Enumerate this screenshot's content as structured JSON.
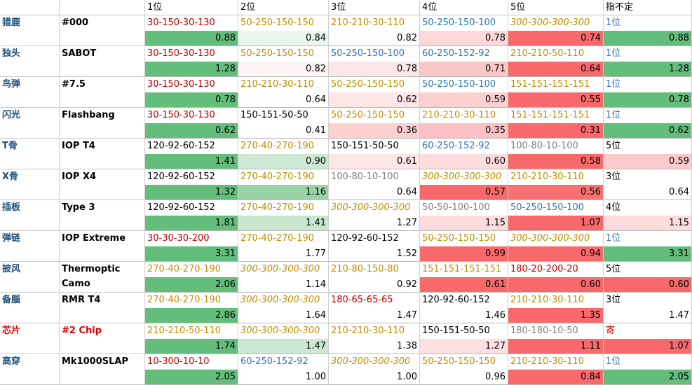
{
  "header": [
    "1位",
    "2位",
    "3位",
    "4位",
    "5位",
    "指不定"
  ],
  "rows": [
    {
      "name": "猎鹿",
      "item": "#000",
      "color": "#1f4e79",
      "cells": [
        {
          "text": "30-150-30-130",
          "color": "#c00000",
          "value": "0.88",
          "fill": "#63be7b"
        },
        {
          "text": "50-250-150-150",
          "color": "#bf8f00",
          "value": "0.84",
          "fill": "#eaf6ec"
        },
        {
          "text": "210-210-30-110",
          "color": "#bf8f00",
          "value": "0.82",
          "fill": "#fdfdfd"
        },
        {
          "text": "50-250-150-100",
          "color": "#2f75b5",
          "value": "0.78",
          "fill": "#fbd8d9"
        },
        {
          "text": "300-300-300-300",
          "color": "#bf8f00",
          "italic": true,
          "value": "0.74",
          "fill": "#f8696b"
        },
        {
          "text": "1位",
          "color": "#2f75b5",
          "value": "0.88",
          "fill": "#63be7b"
        }
      ]
    },
    {
      "name": "独头",
      "item": "SABOT",
      "color": "#1f4e79",
      "cells": [
        {
          "text": "30-150-30-130",
          "color": "#c00000",
          "value": "1.28",
          "fill": "#63be7b"
        },
        {
          "text": "50-250-150-150",
          "color": "#bf8f00",
          "value": "0.82",
          "fill": "#fdf5f5"
        },
        {
          "text": "50-250-150-100",
          "color": "#2f75b5",
          "value": "0.78",
          "fill": "#fce7e8"
        },
        {
          "text": "60-250-152-92",
          "color": "#2f75b5",
          "value": "0.71",
          "fill": "#fac7c8"
        },
        {
          "text": "210-210-50-110",
          "color": "#bf8f00",
          "value": "0.64",
          "fill": "#f8696b"
        },
        {
          "text": "1位",
          "color": "#2f75b5",
          "value": "1.28",
          "fill": "#63be7b"
        }
      ]
    },
    {
      "name": "鸟弹",
      "item": "#7.5",
      "color": "#1f4e79",
      "cells": [
        {
          "text": "30-150-30-130",
          "color": "#c00000",
          "value": "0.78",
          "fill": "#63be7b"
        },
        {
          "text": "210-210-30-110",
          "color": "#bf8f00",
          "value": "0.64",
          "fill": "#fefefe"
        },
        {
          "text": "50-250-150-150",
          "color": "#bf8f00",
          "value": "0.62",
          "fill": "#fde6e6"
        },
        {
          "text": "50-250-150-100",
          "color": "#2f75b5",
          "value": "0.59",
          "fill": "#fbd0d1"
        },
        {
          "text": "151-151-151-151",
          "color": "#bf8f00",
          "value": "0.55",
          "fill": "#f8696b"
        },
        {
          "text": "1位",
          "color": "#2f75b5",
          "value": "0.78",
          "fill": "#63be7b"
        }
      ]
    },
    {
      "name": "闪光",
      "item": "Flashbang",
      "color": "#1f4e79",
      "cells": [
        {
          "text": "30-150-30-130",
          "color": "#c00000",
          "value": "0.62",
          "fill": "#63be7b"
        },
        {
          "text": "150-151-50-50",
          "color": "#000000",
          "value": "0.41",
          "fill": "#ffffff"
        },
        {
          "text": "50-250-150-150",
          "color": "#bf8f00",
          "value": "0.36",
          "fill": "#fdd0d0"
        },
        {
          "text": "210-210-30-110",
          "color": "#bf8f00",
          "value": "0.35",
          "fill": "#fbc1c2"
        },
        {
          "text": "151-151-151-151",
          "color": "#bf8f00",
          "value": "0.31",
          "fill": "#f8696b"
        },
        {
          "text": "1位",
          "color": "#2f75b5",
          "value": "0.62",
          "fill": "#63be7b"
        }
      ]
    },
    {
      "name": "T骨",
      "item": "IOP T4",
      "color": "#1f4e79",
      "cells": [
        {
          "text": "120-92-60-152",
          "color": "#000000",
          "value": "1.41",
          "fill": "#63be7b"
        },
        {
          "text": "270-40-270-190",
          "color": "#bf8f00",
          "value": "0.90",
          "fill": "#cde9d4"
        },
        {
          "text": "150-151-50-50",
          "color": "#000000",
          "value": "0.61",
          "fill": "#fde6e6"
        },
        {
          "text": "60-250-152-92",
          "color": "#2f75b5",
          "value": "0.60",
          "fill": "#fcdcdd"
        },
        {
          "text": "100-80-10-100",
          "color": "#808080",
          "value": "0.58",
          "fill": "#f8696b"
        },
        {
          "text": "5位",
          "color": "#000000",
          "value": "0.59",
          "fill": "#fbcbcc"
        }
      ]
    },
    {
      "name": "X骨",
      "item": "IOP X4",
      "color": "#1f4e79",
      "cells": [
        {
          "text": "120-92-60-152",
          "color": "#000000",
          "value": "1.32",
          "fill": "#63be7b"
        },
        {
          "text": "270-40-270-190",
          "color": "#bf8f00",
          "value": "1.16",
          "fill": "#98d3a7"
        },
        {
          "text": "100-80-10-100",
          "color": "#808080",
          "value": "0.64",
          "fill": "#ffffff"
        },
        {
          "text": "300-300-300-300",
          "color": "#bf8f00",
          "italic": true,
          "value": "0.57",
          "fill": "#f8696b"
        },
        {
          "text": "210-210-30-110",
          "color": "#bf8f00",
          "value": "0.56",
          "fill": "#f87072"
        },
        {
          "text": "3位",
          "color": "#000000",
          "value": "0.64",
          "fill": "#ffffff"
        }
      ]
    },
    {
      "name": "插板",
      "item": "Type 3",
      "color": "#1f4e79",
      "cells": [
        {
          "text": "120-92-60-152",
          "color": "#000000",
          "value": "1.81",
          "fill": "#63be7b"
        },
        {
          "text": "270-40-270-190",
          "color": "#bf8f00",
          "value": "1.41",
          "fill": "#c8e7cf"
        },
        {
          "text": "300-300-300-300",
          "color": "#bf8f00",
          "italic": true,
          "value": "1.27",
          "fill": "#ffffff"
        },
        {
          "text": "50-50-100-100",
          "color": "#808080",
          "value": "1.15",
          "fill": "#fcdcdd"
        },
        {
          "text": "50-250-150-100",
          "color": "#2f75b5",
          "value": "1.07",
          "fill": "#f8696b"
        },
        {
          "text": "4位",
          "color": "#000000",
          "value": "1.15",
          "fill": "#fcdcdd"
        }
      ]
    },
    {
      "name": "弹链",
      "item": "IOP Extreme",
      "color": "#1f4e79",
      "cells": [
        {
          "text": "30-30-30-200",
          "color": "#c00000",
          "value": "3.31",
          "fill": "#63be7b"
        },
        {
          "text": "270-40-270-190",
          "color": "#bf8f00",
          "value": "1.77",
          "fill": "#ffffff"
        },
        {
          "text": "120-92-60-152",
          "color": "#000000",
          "value": "1.52",
          "fill": "#ffffff"
        },
        {
          "text": "50-250-150-150",
          "color": "#bf8f00",
          "value": "0.99",
          "fill": "#f8696b"
        },
        {
          "text": "300-300-300-300",
          "color": "#bf8f00",
          "italic": true,
          "value": "0.94",
          "fill": "#f8696b"
        },
        {
          "text": "1位",
          "color": "#2f75b5",
          "value": "3.31",
          "fill": "#63be7b"
        }
      ]
    },
    {
      "name": "披风",
      "item": "Thermoptic Camo",
      "color": "#1f4e79",
      "cells": [
        {
          "text": "270-40-270-190",
          "color": "#bf8f00",
          "value": "2.06",
          "fill": "#63be7b"
        },
        {
          "text": "300-300-300-300",
          "color": "#bf8f00",
          "italic": true,
          "value": "1.14",
          "fill": "#ffffff"
        },
        {
          "text": "210-80-150-80",
          "color": "#bf8f00",
          "value": "0.92",
          "fill": "#ffffff"
        },
        {
          "text": "151-151-151-151",
          "color": "#bf8f00",
          "value": "0.61",
          "fill": "#f8696b"
        },
        {
          "text": "180-20-200-20",
          "color": "#c00000",
          "value": "0.60",
          "fill": "#f8696b"
        },
        {
          "text": "5位",
          "color": "#000000",
          "value": "0.60",
          "fill": "#f8696b"
        }
      ]
    },
    {
      "name": "备腦",
      "item": "RMR T4",
      "color": "#1f4e79",
      "cells": [
        {
          "text": "270-40-270-190",
          "color": "#bf8f00",
          "value": "2.86",
          "fill": "#63be7b"
        },
        {
          "text": "300-300-300-300",
          "color": "#bf8f00",
          "italic": true,
          "value": "1.64",
          "fill": "#ffffff"
        },
        {
          "text": "180-65-65-65",
          "color": "#c00000",
          "value": "1.47",
          "fill": "#ffffff"
        },
        {
          "text": "120-92-60-152",
          "color": "#000000",
          "value": "1.46",
          "fill": "#ffffff"
        },
        {
          "text": "210-210-30-110",
          "color": "#bf8f00",
          "value": "1.35",
          "fill": "#f8696b"
        },
        {
          "text": "3位",
          "color": "#000000",
          "value": "1.47",
          "fill": "#ffffff"
        }
      ]
    },
    {
      "name": "芯片",
      "item": "#2 Chip",
      "color": "#e00000",
      "cells": [
        {
          "text": "210-210-50-110",
          "color": "#bf8f00",
          "value": "1.74",
          "fill": "#63be7b"
        },
        {
          "text": "300-300-300-300",
          "color": "#bf8f00",
          "italic": true,
          "value": "1.47",
          "fill": "#cbe8d2"
        },
        {
          "text": "210-210-30-110",
          "color": "#bf8f00",
          "value": "1.38",
          "fill": "#ffffff"
        },
        {
          "text": "150-151-50-50",
          "color": "#000000",
          "value": "1.27",
          "fill": "#fde0e1"
        },
        {
          "text": "180-180-10-50",
          "color": "#808080",
          "value": "1.11",
          "fill": "#f8696b"
        },
        {
          "text": "寄",
          "color": "#e00000",
          "value": "1.07",
          "fill": "#f8696b"
        }
      ]
    },
    {
      "name": "高穿",
      "item": "Mk1000SLAP",
      "color": "#1f4e79",
      "cells": [
        {
          "text": "10-300-10-10",
          "color": "#c00000",
          "value": "2.05",
          "fill": "#63be7b"
        },
        {
          "text": "60-250-152-92",
          "color": "#2f75b5",
          "value": "1.00",
          "fill": "#ffffff"
        },
        {
          "text": "300-300-300-300",
          "color": "#bf8f00",
          "italic": true,
          "value": "1.00",
          "fill": "#ffffff"
        },
        {
          "text": "50-250-150-150",
          "color": "#bf8f00",
          "value": "0.96",
          "fill": "#ffffff"
        },
        {
          "text": "210-210-30-110",
          "color": "#bf8f00",
          "value": "0.84",
          "fill": "#f8696b"
        },
        {
          "text": "1位",
          "color": "#2f75b5",
          "value": "2.05",
          "fill": "#63be7b"
        }
      ]
    }
  ]
}
